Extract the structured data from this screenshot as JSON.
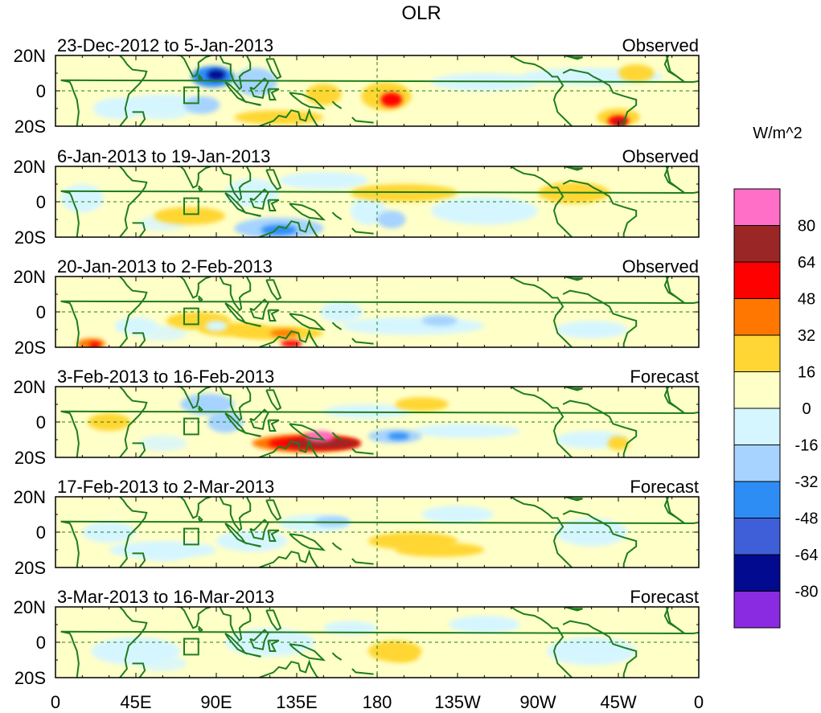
{
  "title": "OLR",
  "colorbar": {
    "unit": "W/m^2",
    "labels": [
      "80",
      "64",
      "48",
      "32",
      "16",
      "0",
      "-16",
      "-32",
      "-48",
      "-64",
      "-80"
    ],
    "colors": [
      "#ff6ec7",
      "#9b2626",
      "#ff0000",
      "#ff7700",
      "#ffd633",
      "#ffffc8",
      "#d6f6ff",
      "#a6d3ff",
      "#2e8df5",
      "#3f5fd8",
      "#020a8f",
      "#8a2be2"
    ]
  },
  "x_axis": {
    "ticks": [
      "0",
      "45E",
      "90E",
      "135E",
      "180",
      "135W",
      "90W",
      "45W",
      "0"
    ]
  },
  "y_axis": {
    "ticks": [
      "20N",
      "0",
      "20S"
    ]
  },
  "panels": [
    {
      "period": "23-Dec-2012 to 5-Jan-2013",
      "kind": "Observed"
    },
    {
      "period": "6-Jan-2013 to 19-Jan-2013",
      "kind": "Observed"
    },
    {
      "period": "20-Jan-2013 to 2-Feb-2013",
      "kind": "Observed"
    },
    {
      "period": "3-Feb-2013 to 16-Feb-2013",
      "kind": "Forecast"
    },
    {
      "period": "17-Feb-2013 to 2-Mar-2013",
      "kind": "Forecast"
    },
    {
      "period": "3-Mar-2013 to 16-Mar-2013",
      "kind": "Forecast"
    }
  ],
  "anomalies": [
    [
      {
        "lon": 88,
        "lat": 8,
        "lw": 12,
        "lh": 6,
        "level": -3
      },
      {
        "lon": 90,
        "lat": 9,
        "lw": 5,
        "lh": 3,
        "level": -5
      },
      {
        "lon": 112,
        "lat": 5,
        "lw": 12,
        "lh": 8,
        "level": -2
      },
      {
        "lon": 82,
        "lat": -8,
        "lw": 10,
        "lh": 5,
        "level": -2
      },
      {
        "lon": 35,
        "lat": -10,
        "lw": 14,
        "lh": 6,
        "level": -1
      },
      {
        "lon": 60,
        "lat": -8,
        "lw": 25,
        "lh": 6,
        "level": -1
      },
      {
        "lon": 150,
        "lat": -2,
        "lw": 10,
        "lh": 6,
        "level": 1
      },
      {
        "lon": 185,
        "lat": -3,
        "lw": 14,
        "lh": 8,
        "level": 1
      },
      {
        "lon": 188,
        "lat": -5,
        "lw": 6,
        "lh": 4,
        "level": 3
      },
      {
        "lon": 125,
        "lat": -15,
        "lw": 25,
        "lh": 4,
        "level": 1
      },
      {
        "lon": 300,
        "lat": 8,
        "lw": 40,
        "lh": 5,
        "level": -1
      },
      {
        "lon": 315,
        "lat": -15,
        "lw": 12,
        "lh": 5,
        "level": 1
      },
      {
        "lon": 315,
        "lat": -17,
        "lw": 6,
        "lh": 3,
        "level": 3
      },
      {
        "lon": 316,
        "lat": -18,
        "lw": 3,
        "lh": 2,
        "level": 4
      },
      {
        "lon": 325,
        "lat": 10,
        "lw": 10,
        "lh": 5,
        "level": 1
      },
      {
        "lon": 240,
        "lat": 5,
        "lw": 30,
        "lh": 5,
        "level": -1
      }
    ],
    [
      {
        "lon": 15,
        "lat": 2,
        "lw": 12,
        "lh": 8,
        "level": -1
      },
      {
        "lon": 75,
        "lat": -8,
        "lw": 20,
        "lh": 5,
        "level": 1
      },
      {
        "lon": 125,
        "lat": -15,
        "lw": 25,
        "lh": 6,
        "level": -2
      },
      {
        "lon": 125,
        "lat": -16,
        "lw": 10,
        "lh": 3,
        "level": -3
      },
      {
        "lon": 150,
        "lat": 12,
        "lw": 25,
        "lh": 5,
        "level": -1
      },
      {
        "lon": 175,
        "lat": -5,
        "lw": 10,
        "lh": 8,
        "level": -1
      },
      {
        "lon": 188,
        "lat": -10,
        "lw": 8,
        "lh": 5,
        "level": -2
      },
      {
        "lon": 195,
        "lat": 5,
        "lw": 30,
        "lh": 5,
        "level": 1
      },
      {
        "lon": 240,
        "lat": -5,
        "lw": 30,
        "lh": 8,
        "level": -1
      },
      {
        "lon": 290,
        "lat": 5,
        "lw": 20,
        "lh": 6,
        "level": 1
      },
      {
        "lon": 110,
        "lat": 5,
        "lw": 15,
        "lh": 8,
        "level": -1
      }
    ],
    [
      {
        "lon": 20,
        "lat": -18,
        "lw": 8,
        "lh": 3,
        "level": 2
      },
      {
        "lon": 22,
        "lat": -19,
        "lw": 3,
        "lh": 2,
        "level": 3
      },
      {
        "lon": 80,
        "lat": -5,
        "lw": 18,
        "lh": 5,
        "level": 1
      },
      {
        "lon": 100,
        "lat": -10,
        "lw": 20,
        "lh": 4,
        "level": 1
      },
      {
        "lon": 125,
        "lat": -12,
        "lw": 25,
        "lh": 4,
        "level": 1
      },
      {
        "lon": 128,
        "lat": -12,
        "lw": 8,
        "lh": 2,
        "level": 2
      },
      {
        "lon": 132,
        "lat": -18,
        "lw": 6,
        "lh": 2,
        "level": 3
      },
      {
        "lon": 90,
        "lat": -8,
        "lw": 6,
        "lh": 3,
        "level": -1
      },
      {
        "lon": 160,
        "lat": 0,
        "lw": 12,
        "lh": 6,
        "level": -1
      },
      {
        "lon": 200,
        "lat": -8,
        "lw": 40,
        "lh": 5,
        "level": -1
      },
      {
        "lon": 215,
        "lat": -5,
        "lw": 10,
        "lh": 3,
        "level": -2
      },
      {
        "lon": 45,
        "lat": -8,
        "lw": 12,
        "lh": 5,
        "level": -1
      },
      {
        "lon": 300,
        "lat": -10,
        "lw": 20,
        "lh": 5,
        "level": -1
      }
    ],
    [
      {
        "lon": 85,
        "lat": 10,
        "lw": 15,
        "lh": 6,
        "level": -2
      },
      {
        "lon": 95,
        "lat": 0,
        "lw": 10,
        "lh": 6,
        "level": -2
      },
      {
        "lon": 140,
        "lat": -12,
        "lw": 30,
        "lh": 5,
        "level": 2
      },
      {
        "lon": 145,
        "lat": -12,
        "lw": 26,
        "lh": 4,
        "level": 3
      },
      {
        "lon": 150,
        "lat": -12,
        "lw": 20,
        "lh": 3,
        "level": 4
      },
      {
        "lon": 148,
        "lat": -8,
        "lw": 8,
        "lh": 3,
        "level": 5
      },
      {
        "lon": 175,
        "lat": 6,
        "lw": 25,
        "lh": 4,
        "level": -1
      },
      {
        "lon": 190,
        "lat": -8,
        "lw": 15,
        "lh": 4,
        "level": -2
      },
      {
        "lon": 192,
        "lat": -8,
        "lw": 6,
        "lh": 2,
        "level": -3
      },
      {
        "lon": 30,
        "lat": 0,
        "lw": 12,
        "lh": 5,
        "level": 1
      },
      {
        "lon": 230,
        "lat": -5,
        "lw": 30,
        "lh": 4,
        "level": -1
      },
      {
        "lon": 300,
        "lat": -10,
        "lw": 20,
        "lh": 5,
        "level": -1
      },
      {
        "lon": 315,
        "lat": -12,
        "lw": 6,
        "lh": 4,
        "level": 1
      },
      {
        "lon": 205,
        "lat": 10,
        "lw": 15,
        "lh": 4,
        "level": 1
      }
    ],
    [
      {
        "lon": 145,
        "lat": 5,
        "lw": 20,
        "lh": 5,
        "level": -1
      },
      {
        "lon": 155,
        "lat": 6,
        "lw": 10,
        "lh": 3,
        "level": -2
      },
      {
        "lon": 200,
        "lat": -5,
        "lw": 25,
        "lh": 5,
        "level": 1
      },
      {
        "lon": 215,
        "lat": -10,
        "lw": 25,
        "lh": 4,
        "level": 1
      },
      {
        "lon": 110,
        "lat": -5,
        "lw": 20,
        "lh": 6,
        "level": -1
      },
      {
        "lon": 30,
        "lat": 0,
        "lw": 15,
        "lh": 6,
        "level": -1
      },
      {
        "lon": 225,
        "lat": 10,
        "lw": 20,
        "lh": 5,
        "level": -1
      },
      {
        "lon": 300,
        "lat": 0,
        "lw": 20,
        "lh": 8,
        "level": -1
      },
      {
        "lon": 60,
        "lat": -10,
        "lw": 30,
        "lh": 5,
        "level": -1
      }
    ],
    [
      {
        "lon": 190,
        "lat": -5,
        "lw": 15,
        "lh": 6,
        "level": 1
      },
      {
        "lon": 195,
        "lat": -8,
        "lw": 8,
        "lh": 3,
        "level": 1
      },
      {
        "lon": 240,
        "lat": 10,
        "lw": 20,
        "lh": 5,
        "level": -1
      },
      {
        "lon": 120,
        "lat": 0,
        "lw": 25,
        "lh": 8,
        "level": -1
      },
      {
        "lon": 45,
        "lat": -5,
        "lw": 25,
        "lh": 8,
        "level": -1
      },
      {
        "lon": 300,
        "lat": -5,
        "lw": 25,
        "lh": 8,
        "level": -1
      },
      {
        "lon": 165,
        "lat": 8,
        "lw": 15,
        "lh": 4,
        "level": -1
      }
    ]
  ]
}
